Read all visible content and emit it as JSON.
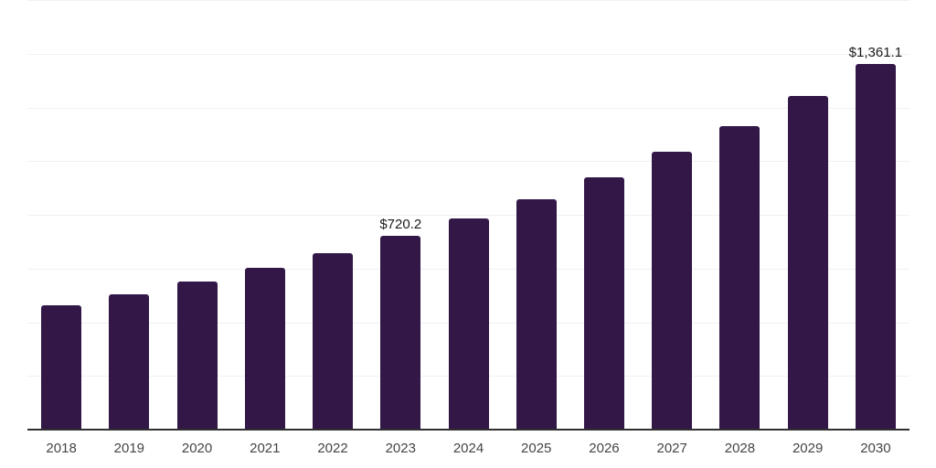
{
  "chart_data": {
    "type": "bar",
    "categories": [
      "2018",
      "2019",
      "2020",
      "2021",
      "2022",
      "2023",
      "2024",
      "2025",
      "2026",
      "2027",
      "2028",
      "2029",
      "2030"
    ],
    "values": [
      462,
      503,
      551,
      602,
      657,
      720.2,
      788,
      859,
      941,
      1034,
      1130,
      1242,
      1361.1
    ],
    "data_labels": [
      "",
      "",
      "",
      "",
      "",
      "$720.2",
      "",
      "",
      "",
      "",
      "",
      "",
      "$1,361.1"
    ],
    "title": "",
    "xlabel": "",
    "ylabel": "",
    "ylim": [
      0,
      1600
    ],
    "gridline_step": 200,
    "grid": true,
    "legend": "none",
    "colors": {
      "bar": "#321747",
      "axis_line": "#303030",
      "gridline": "#f1f1f4",
      "tick_label": "#454545",
      "data_label": "#1a1a1a",
      "background": "#ffffff"
    }
  }
}
